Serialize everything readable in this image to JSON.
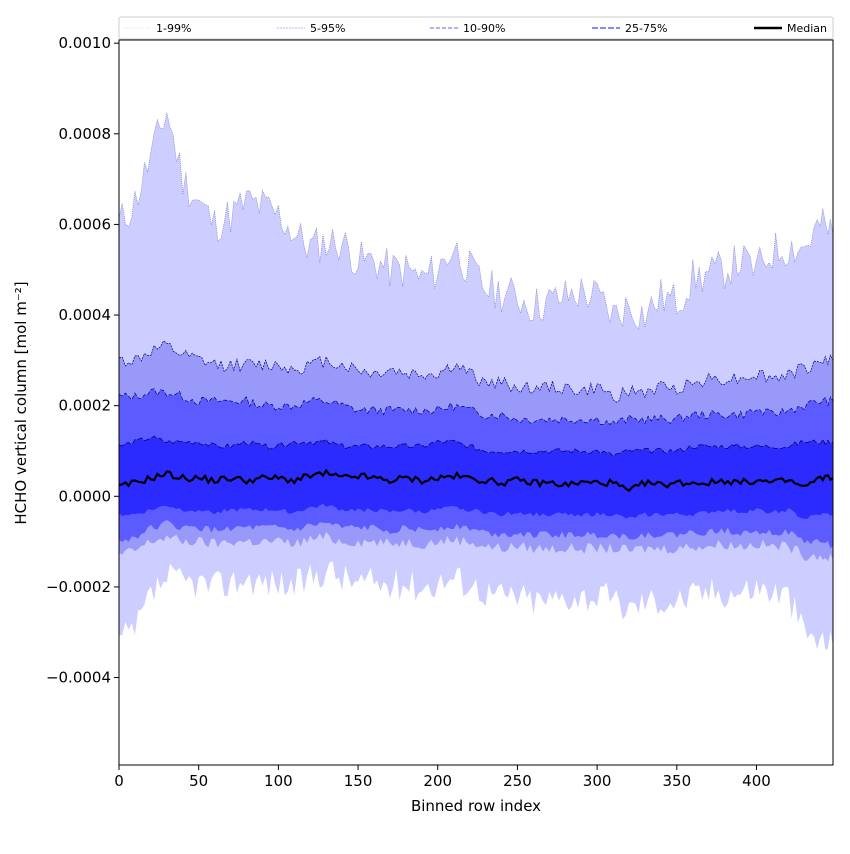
{
  "chart_data": {
    "type": "area",
    "title": "",
    "xlabel": "Binned row index",
    "ylabel": "HCHO vertical column [mol m⁻²]",
    "xlim": [
      0,
      448
    ],
    "ylim": [
      -0.000593,
      0.001007
    ],
    "value_scale": 0.0001,
    "x": [
      0,
      10,
      20,
      30,
      40,
      50,
      60,
      70,
      80,
      90,
      100,
      110,
      120,
      130,
      140,
      150,
      160,
      170,
      180,
      190,
      200,
      210,
      220,
      230,
      240,
      250,
      260,
      270,
      280,
      290,
      300,
      310,
      320,
      330,
      340,
      350,
      360,
      370,
      380,
      390,
      400,
      410,
      420,
      430,
      440,
      448
    ],
    "x_ticks": [
      0,
      50,
      100,
      150,
      200,
      250,
      300,
      350,
      400
    ],
    "x_tick_labels": [
      "0",
      "50",
      "100",
      "150",
      "200",
      "250",
      "300",
      "350",
      "400"
    ],
    "y_ticks": [
      -0.0004,
      -0.0002,
      0,
      0.0002,
      0.0004,
      0.0006,
      0.0008,
      0.001
    ],
    "y_tick_labels": [
      "−0.0004",
      "−0.0002",
      "0.0000",
      "0.0002",
      "0.0004",
      "0.0006",
      "0.0008",
      "0.0010"
    ],
    "legend_position": "top",
    "bands": [
      {
        "name": "1-99%",
        "fill": "#cdcdff",
        "line": "#8080c0",
        "dash": "1,1",
        "upper": [
          6.0,
          6.5,
          7.5,
          8.5,
          7.0,
          6.5,
          6.0,
          6.2,
          6.5,
          6.4,
          6.2,
          5.8,
          5.5,
          5.6,
          5.6,
          5.2,
          5.2,
          5.0,
          5.0,
          4.8,
          5.0,
          5.5,
          5.0,
          4.6,
          4.5,
          4.4,
          4.2,
          4.3,
          4.4,
          4.5,
          4.4,
          4.0,
          4.2,
          4.0,
          4.4,
          4.3,
          4.8,
          4.9,
          5.0,
          5.2,
          5.0,
          5.4,
          5.5,
          5.5,
          6.0,
          5.8
        ],
        "lower": [
          -3.2,
          -3.0,
          -2.2,
          -1.8,
          -1.9,
          -1.9,
          -2.0,
          -1.9,
          -1.8,
          -1.9,
          -1.9,
          -2.0,
          -1.8,
          -1.6,
          -1.8,
          -1.9,
          -1.9,
          -2.0,
          -1.9,
          -2.0,
          -1.9,
          -1.8,
          -1.9,
          -2.1,
          -2.2,
          -2.2,
          -2.3,
          -2.3,
          -2.2,
          -2.2,
          -2.2,
          -2.3,
          -2.5,
          -2.3,
          -2.3,
          -2.3,
          -2.2,
          -2.1,
          -2.1,
          -2.1,
          -2.0,
          -2.1,
          -2.2,
          -3.0,
          -3.2,
          -3.3
        ]
      },
      {
        "name": "5-95%",
        "fill": "#9999fa",
        "line": "#000080",
        "dash": "2,1",
        "upper": [
          3.0,
          3.0,
          3.2,
          3.3,
          3.1,
          3.0,
          2.9,
          2.9,
          2.9,
          2.9,
          2.9,
          2.8,
          2.9,
          3.0,
          2.9,
          2.8,
          2.7,
          2.8,
          2.7,
          2.7,
          2.7,
          2.9,
          2.7,
          2.5,
          2.5,
          2.4,
          2.4,
          2.4,
          2.4,
          2.3,
          2.4,
          2.2,
          2.3,
          2.3,
          2.4,
          2.4,
          2.5,
          2.6,
          2.6,
          2.6,
          2.7,
          2.6,
          2.7,
          2.8,
          3.0,
          3.0
        ],
        "lower": [
          -1.3,
          -1.2,
          -1.0,
          -0.9,
          -1.0,
          -1.0,
          -1.05,
          -1.0,
          -1.0,
          -1.0,
          -1.0,
          -1.05,
          -0.95,
          -0.9,
          -1.0,
          -1.0,
          -1.0,
          -1.05,
          -1.0,
          -1.05,
          -1.0,
          -0.95,
          -1.0,
          -1.1,
          -1.15,
          -1.1,
          -1.15,
          -1.15,
          -1.15,
          -1.15,
          -1.15,
          -1.15,
          -1.2,
          -1.15,
          -1.15,
          -1.15,
          -1.1,
          -1.1,
          -1.05,
          -1.1,
          -1.05,
          -1.1,
          -1.1,
          -1.3,
          -1.3,
          -1.4
        ]
      },
      {
        "name": "10-90%",
        "fill": "#5b5bff",
        "line": "#000080",
        "dash": "4,2",
        "upper": [
          2.2,
          2.2,
          2.3,
          2.3,
          2.2,
          2.1,
          2.1,
          2.1,
          2.1,
          2.0,
          2.0,
          2.0,
          2.1,
          2.1,
          2.0,
          1.9,
          1.9,
          1.9,
          1.9,
          1.9,
          1.9,
          2.0,
          1.9,
          1.8,
          1.8,
          1.7,
          1.7,
          1.7,
          1.7,
          1.7,
          1.7,
          1.6,
          1.7,
          1.7,
          1.7,
          1.7,
          1.8,
          1.8,
          1.8,
          1.8,
          1.9,
          1.8,
          1.9,
          2.0,
          2.1,
          2.1
        ],
        "lower": [
          -1.0,
          -0.9,
          -0.7,
          -0.6,
          -0.7,
          -0.7,
          -0.75,
          -0.7,
          -0.7,
          -0.7,
          -0.7,
          -0.75,
          -0.65,
          -0.6,
          -0.7,
          -0.7,
          -0.7,
          -0.75,
          -0.7,
          -0.75,
          -0.7,
          -0.65,
          -0.7,
          -0.8,
          -0.85,
          -0.8,
          -0.85,
          -0.85,
          -0.85,
          -0.85,
          -0.85,
          -0.85,
          -0.9,
          -0.85,
          -0.85,
          -0.85,
          -0.8,
          -0.8,
          -0.75,
          -0.8,
          -0.75,
          -0.8,
          -0.8,
          -1.0,
          -1.0,
          -1.1
        ]
      },
      {
        "name": "25-75%",
        "fill": "#2b2bff",
        "line": "#000060",
        "dash": "6,2",
        "upper": [
          1.1,
          1.2,
          1.3,
          1.2,
          1.2,
          1.2,
          1.1,
          1.1,
          1.2,
          1.1,
          1.1,
          1.2,
          1.2,
          1.2,
          1.1,
          1.1,
          1.1,
          1.1,
          1.1,
          1.1,
          1.2,
          1.2,
          1.1,
          1.0,
          1.0,
          1.0,
          1.0,
          1.0,
          1.0,
          1.0,
          1.0,
          0.9,
          1.0,
          1.0,
          1.0,
          1.0,
          1.1,
          1.1,
          1.1,
          1.1,
          1.1,
          1.1,
          1.1,
          1.2,
          1.2,
          1.2
        ],
        "lower": [
          -0.4,
          -0.4,
          -0.3,
          -0.2,
          -0.3,
          -0.3,
          -0.35,
          -0.3,
          -0.3,
          -0.3,
          -0.3,
          -0.35,
          -0.25,
          -0.2,
          -0.3,
          -0.3,
          -0.3,
          -0.35,
          -0.3,
          -0.35,
          -0.3,
          -0.25,
          -0.3,
          -0.35,
          -0.4,
          -0.35,
          -0.4,
          -0.4,
          -0.4,
          -0.4,
          -0.4,
          -0.4,
          -0.5,
          -0.4,
          -0.4,
          -0.4,
          -0.4,
          -0.35,
          -0.3,
          -0.35,
          -0.3,
          -0.35,
          -0.3,
          -0.5,
          -0.4,
          -0.4
        ]
      }
    ],
    "legend": [
      {
        "label": "1-99%",
        "color": "#d8d8f4",
        "dash": "1,1",
        "width": 0.8
      },
      {
        "label": "5-95%",
        "color": "#a0a0e8",
        "dash": "2,1",
        "width": 0.8
      },
      {
        "label": "10-90%",
        "color": "#8080f0",
        "dash": "4,2",
        "width": 1.2
      },
      {
        "label": "25-75%",
        "color": "#6060ff",
        "dash": "6,2",
        "width": 1.5
      },
      {
        "label": "Median",
        "color": "#000000",
        "dash": "",
        "width": 2.5
      }
    ],
    "median": {
      "name": "Median",
      "color": "#000000",
      "values": [
        0.2,
        0.3,
        0.4,
        0.5,
        0.4,
        0.4,
        0.35,
        0.4,
        0.35,
        0.4,
        0.4,
        0.35,
        0.45,
        0.5,
        0.4,
        0.45,
        0.4,
        0.35,
        0.4,
        0.35,
        0.4,
        0.45,
        0.4,
        0.35,
        0.3,
        0.35,
        0.3,
        0.3,
        0.25,
        0.3,
        0.3,
        0.3,
        0.1,
        0.3,
        0.25,
        0.3,
        0.3,
        0.3,
        0.35,
        0.3,
        0.35,
        0.3,
        0.35,
        0.2,
        0.4,
        0.4
      ]
    }
  }
}
